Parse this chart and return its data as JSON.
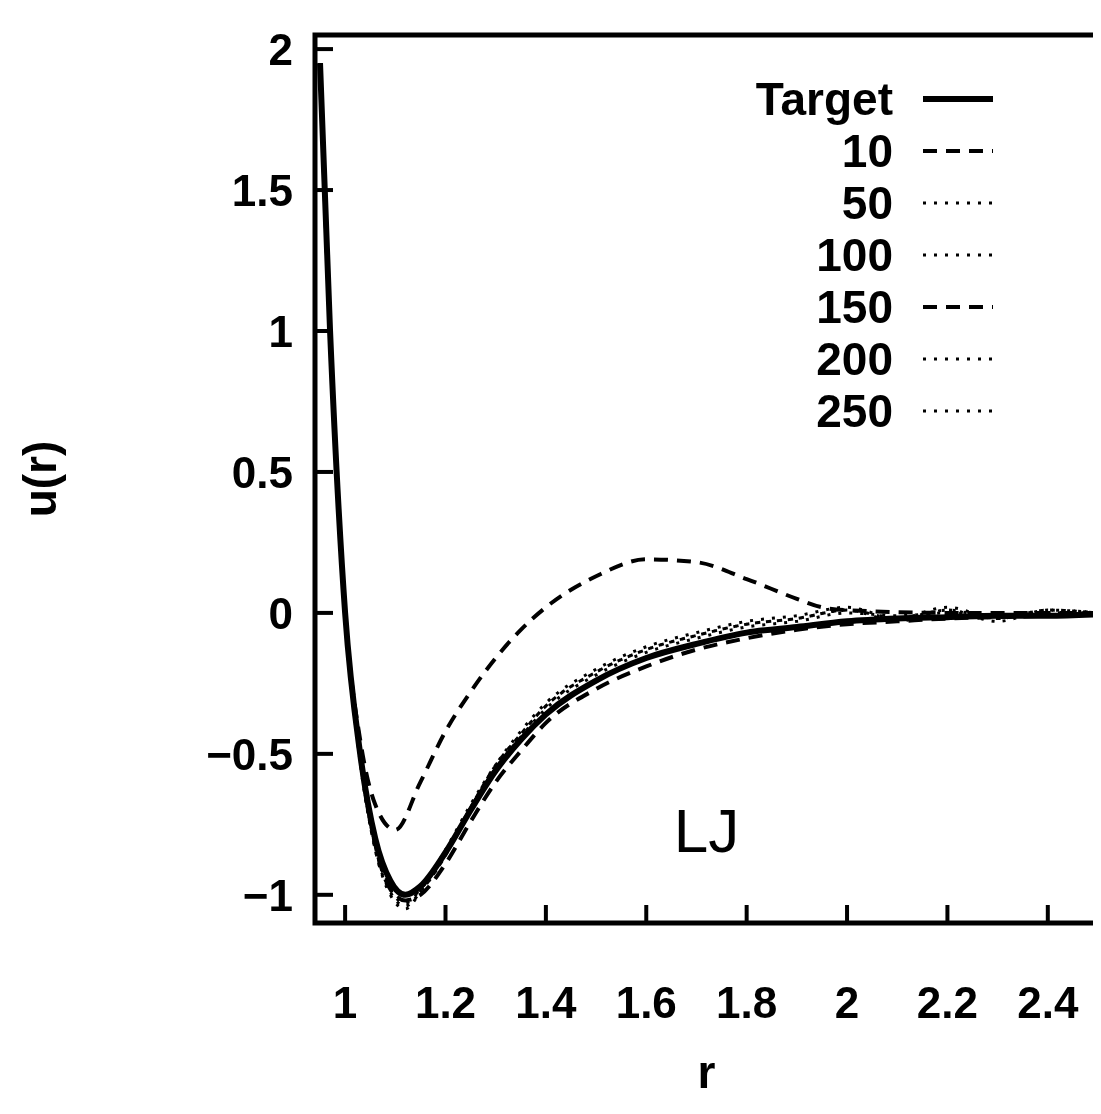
{
  "chart_data": {
    "type": "line",
    "xlabel": "r",
    "ylabel": "u(r)",
    "xlim": [
      0.94,
      2.5
    ],
    "ylim": [
      -1.1,
      2.05
    ],
    "xticks": [
      1,
      1.2,
      1.4,
      1.6,
      1.8,
      2,
      2.2,
      2.4
    ],
    "yticks": [
      2,
      1.5,
      1,
      0.5,
      0,
      {
        "value": -0.5,
        "label": "−0.5"
      },
      {
        "value": -1,
        "label": "−1"
      }
    ],
    "x": [
      0.95,
      0.97,
      1.0,
      1.03,
      1.06,
      1.09,
      1.12,
      1.15,
      1.2,
      1.25,
      1.3,
      1.35,
      1.4,
      1.5,
      1.6,
      1.7,
      1.8,
      1.9,
      2.0,
      2.1,
      2.2,
      2.3,
      2.4,
      2.5
    ],
    "legend": "top right",
    "grid": false,
    "annotations": [
      "LJ"
    ],
    "series": [
      {
        "name": "Target",
        "color": "#000000",
        "line_style": "solid",
        "values": [
          1.95,
          1.0,
          0,
          -0.5,
          -0.8,
          -0.95,
          -1.0,
          -0.97,
          -0.85,
          -0.7,
          -0.56,
          -0.45,
          -0.36,
          -0.24,
          -0.16,
          -0.11,
          -0.07,
          -0.05,
          -0.03,
          -0.02,
          -0.015,
          -0.01,
          -0.01,
          -0.005
        ]
      },
      {
        "name": "10",
        "color": "#000000",
        "line_style": "dashed",
        "x": [
          0.95,
          0.97,
          1.0,
          1.03,
          1.06,
          1.1,
          1.15,
          1.2,
          1.25,
          1.3,
          1.35,
          1.4,
          1.5,
          1.6,
          1.7,
          1.8,
          1.9,
          1.95,
          2.0,
          2.2,
          2.5
        ],
        "values": [
          1.95,
          1.0,
          0,
          -0.45,
          -0.68,
          -0.77,
          -0.6,
          -0.42,
          -0.28,
          -0.16,
          -0.06,
          0.02,
          0.13,
          0.19,
          0.18,
          0.12,
          0.05,
          0.02,
          0.01,
          0,
          0
        ]
      },
      {
        "name": "50",
        "color": "#000000",
        "line_style": "dotted",
        "values": [
          1.95,
          1.0,
          0,
          -0.52,
          -0.83,
          -0.98,
          -1.03,
          -0.98,
          -0.84,
          -0.68,
          -0.54,
          -0.43,
          -0.33,
          -0.21,
          -0.13,
          -0.08,
          -0.04,
          -0.02,
          0.01,
          -0.02,
          0.01,
          -0.02,
          0.01,
          0
        ]
      },
      {
        "name": "100",
        "color": "#000000",
        "line_style": "dotted",
        "values": [
          1.95,
          1.0,
          0,
          -0.51,
          -0.82,
          -0.97,
          -1.02,
          -0.98,
          -0.85,
          -0.69,
          -0.55,
          -0.44,
          -0.34,
          -0.22,
          -0.14,
          -0.09,
          -0.05,
          -0.03,
          0,
          -0.01,
          0,
          -0.01,
          0,
          0
        ]
      },
      {
        "name": "150",
        "color": "#000000",
        "line_style": "dashed",
        "values": [
          1.95,
          1.0,
          0,
          -0.5,
          -0.82,
          -0.98,
          -1.02,
          -1.0,
          -0.89,
          -0.74,
          -0.6,
          -0.49,
          -0.39,
          -0.27,
          -0.19,
          -0.13,
          -0.09,
          -0.06,
          -0.04,
          -0.03,
          -0.02,
          -0.015,
          -0.01,
          0
        ]
      },
      {
        "name": "200",
        "color": "#000000",
        "line_style": "dotted",
        "values": [
          1.95,
          1.0,
          0,
          -0.53,
          -0.84,
          -1.0,
          -1.05,
          -0.99,
          -0.86,
          -0.69,
          -0.54,
          -0.42,
          -0.32,
          -0.2,
          -0.12,
          -0.07,
          -0.03,
          -0.01,
          0.02,
          -0.02,
          0.02,
          -0.02,
          0.01,
          0
        ]
      },
      {
        "name": "250",
        "color": "#000000",
        "line_style": "dotted",
        "values": [
          1.95,
          1.0,
          0,
          -0.52,
          -0.84,
          -0.99,
          -1.04,
          -0.99,
          -0.86,
          -0.69,
          -0.54,
          -0.43,
          -0.33,
          -0.21,
          -0.13,
          -0.08,
          -0.04,
          -0.02,
          0.01,
          -0.03,
          0.01,
          -0.03,
          0.01,
          0
        ]
      }
    ]
  }
}
